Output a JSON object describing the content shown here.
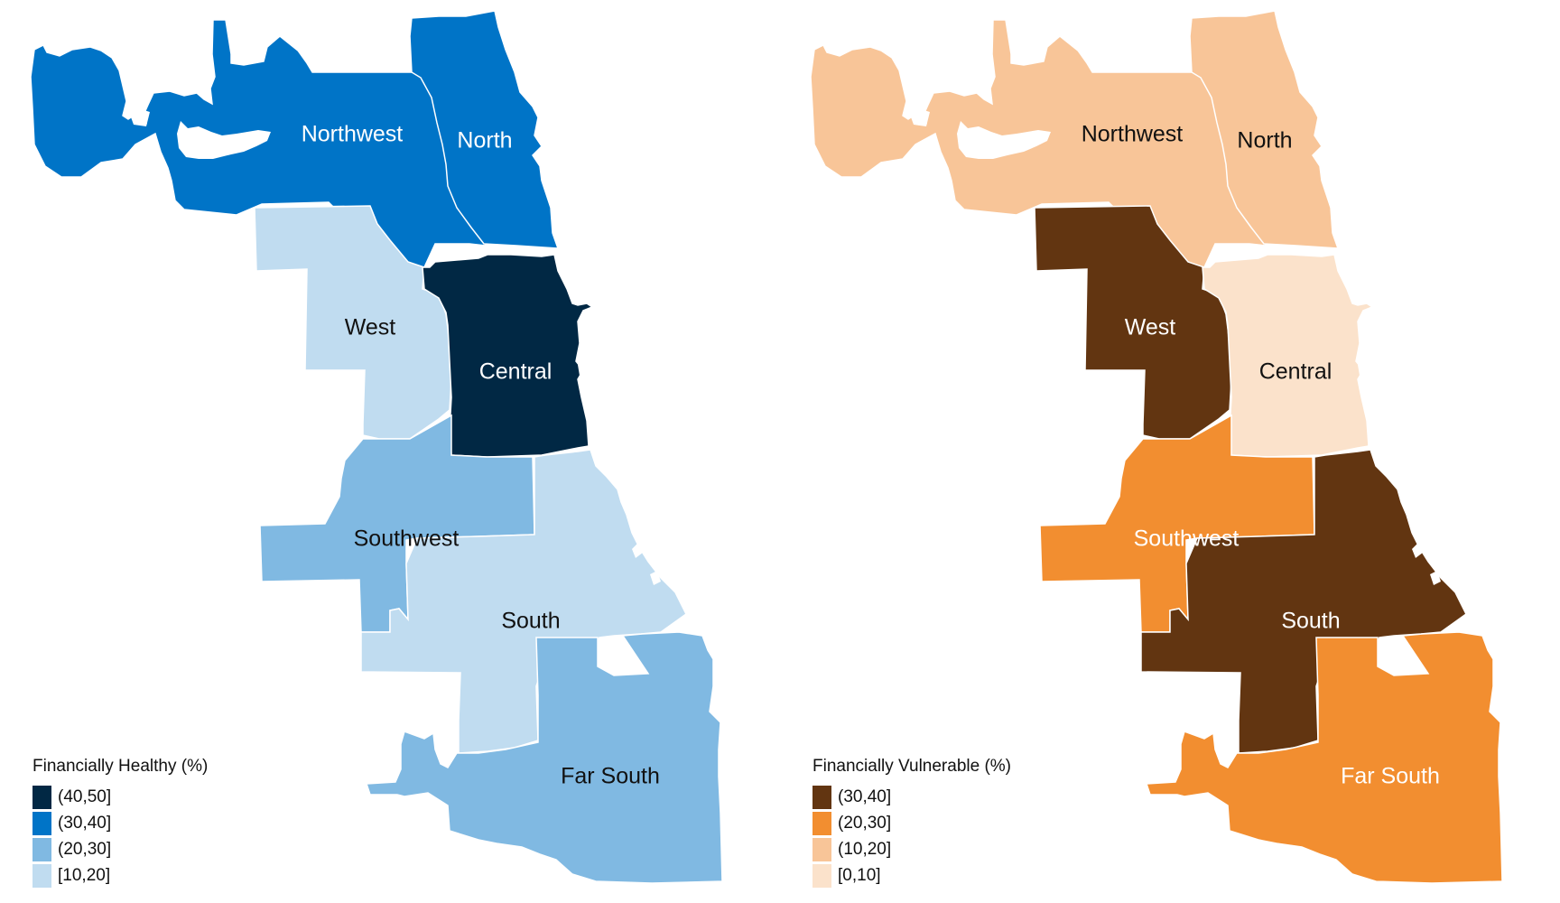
{
  "maps": [
    {
      "legend_title": "Financially Healthy (%)",
      "legend": [
        {
          "label": "(40,50]",
          "color": "#012844"
        },
        {
          "label": "(30,40]",
          "color": "#0074c7"
        },
        {
          "label": "(20,30]",
          "color": "#80b9e2"
        },
        {
          "label": "[10,20]",
          "color": "#c0dcf0"
        }
      ],
      "regions": {
        "northwest": {
          "name": "Northwest",
          "bin": "(30,40]",
          "color": "#0074c7",
          "label_color": "#ffffff"
        },
        "north": {
          "name": "North",
          "bin": "(30,40]",
          "color": "#0074c7",
          "label_color": "#ffffff"
        },
        "west": {
          "name": "West",
          "bin": "[10,20]",
          "color": "#c0dcf0",
          "label_color": "#111111"
        },
        "central": {
          "name": "Central",
          "bin": "(40,50]",
          "color": "#012844",
          "label_color": "#ffffff"
        },
        "southwest": {
          "name": "Southwest",
          "bin": "(20,30]",
          "color": "#80b9e2",
          "label_color": "#111111"
        },
        "south": {
          "name": "South",
          "bin": "[10,20]",
          "color": "#c0dcf0",
          "label_color": "#111111"
        },
        "farsouth": {
          "name": "Far South",
          "bin": "(20,30]",
          "color": "#80b9e2",
          "label_color": "#111111"
        }
      }
    },
    {
      "legend_title": "Financially Vulnerable (%)",
      "legend": [
        {
          "label": "(30,40]",
          "color": "#623511"
        },
        {
          "label": "(20,30]",
          "color": "#f28e30"
        },
        {
          "label": "(10,20]",
          "color": "#f8c598"
        },
        {
          "label": "[0,10]",
          "color": "#fbe2cb"
        }
      ],
      "regions": {
        "northwest": {
          "name": "Northwest",
          "bin": "(10,20]",
          "color": "#f8c598",
          "label_color": "#111111"
        },
        "north": {
          "name": "North",
          "bin": "(10,20]",
          "color": "#f8c598",
          "label_color": "#111111"
        },
        "west": {
          "name": "West",
          "bin": "(30,40]",
          "color": "#623511",
          "label_color": "#ffffff"
        },
        "central": {
          "name": "Central",
          "bin": "[0,10]",
          "color": "#fbe2cb",
          "label_color": "#111111"
        },
        "southwest": {
          "name": "Southwest",
          "bin": "(20,30]",
          "color": "#f28e30",
          "label_color": "#ffffff"
        },
        "south": {
          "name": "South",
          "bin": "(30,40]",
          "color": "#623511",
          "label_color": "#ffffff"
        },
        "farsouth": {
          "name": "Far South",
          "bin": "(20,30]",
          "color": "#f28e30",
          "label_color": "#ffffff"
        }
      }
    }
  ]
}
